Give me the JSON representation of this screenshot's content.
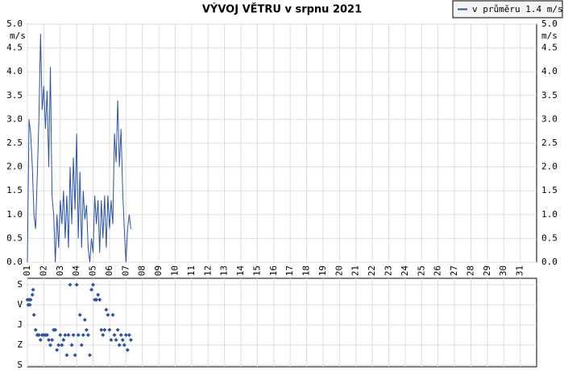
{
  "chart_data": [
    {
      "type": "line",
      "title": "VÝVOJ VĚTRU v srpnu 2021",
      "y_unit": "m/s",
      "series": [
        {
          "name": "v průměru 1.4 m/s",
          "color": "#2a52a8",
          "x": [
            1.0,
            1.1,
            1.2,
            1.3,
            1.4,
            1.5,
            1.6,
            1.7,
            1.8,
            1.9,
            2.0,
            2.1,
            2.2,
            2.3,
            2.4,
            2.5,
            2.6,
            2.7,
            2.8,
            2.9,
            3.0,
            3.1,
            3.2,
            3.3,
            3.4,
            3.5,
            3.6,
            3.7,
            3.8,
            3.9,
            4.0,
            4.1,
            4.2,
            4.3,
            4.4,
            4.5,
            4.6,
            4.7,
            4.8,
            4.9,
            5.0,
            5.1,
            5.2,
            5.3,
            5.4,
            5.5,
            5.6,
            5.7,
            5.8,
            5.9,
            6.0,
            6.1,
            6.2,
            6.3,
            6.4,
            6.5,
            6.6,
            6.7,
            6.8,
            6.9,
            7.0,
            7.1,
            7.2,
            7.3
          ],
          "values": [
            0.0,
            3.0,
            2.7,
            2.0,
            1.0,
            0.7,
            1.8,
            3.0,
            4.8,
            3.2,
            3.7,
            2.8,
            3.6,
            2.0,
            4.1,
            1.4,
            1.0,
            0.0,
            1.0,
            0.3,
            1.3,
            0.8,
            1.5,
            0.5,
            1.4,
            0.3,
            2.0,
            0.8,
            2.2,
            1.1,
            2.7,
            0.5,
            1.9,
            0.3,
            1.5,
            0.9,
            1.2,
            0.3,
            0.0,
            0.5,
            0.2,
            1.4,
            0.8,
            1.3,
            0.2,
            1.3,
            0.5,
            1.4,
            0.3,
            1.4,
            0.7,
            1.3,
            0.8,
            2.7,
            2.1,
            3.4,
            2.0,
            2.8,
            1.5,
            0.7,
            0.0,
            0.7,
            1.0,
            0.7
          ]
        }
      ],
      "xlim": [
        1,
        32
      ],
      "xticks": [
        {
          "value": 1,
          "label": "01"
        },
        {
          "value": 2,
          "label": "02"
        },
        {
          "value": 3,
          "label": "03"
        },
        {
          "value": 4,
          "label": "04"
        },
        {
          "value": 5,
          "label": "05"
        },
        {
          "value": 6,
          "label": "06"
        },
        {
          "value": 7,
          "label": "07"
        },
        {
          "value": 8,
          "label": "08"
        },
        {
          "value": 9,
          "label": "09"
        },
        {
          "value": 10,
          "label": "10"
        },
        {
          "value": 11,
          "label": "11"
        },
        {
          "value": 12,
          "label": "12"
        },
        {
          "value": 13,
          "label": "13"
        },
        {
          "value": 14,
          "label": "14"
        },
        {
          "value": 15,
          "label": "15"
        },
        {
          "value": 16,
          "label": "16"
        },
        {
          "value": 17,
          "label": "17"
        },
        {
          "value": 18,
          "label": "18"
        },
        {
          "value": 19,
          "label": "19"
        },
        {
          "value": 20,
          "label": "20"
        },
        {
          "value": 21,
          "label": "21"
        },
        {
          "value": 22,
          "label": "22"
        },
        {
          "value": 23,
          "label": "23"
        },
        {
          "value": 24,
          "label": "24"
        },
        {
          "value": 25,
          "label": "25"
        },
        {
          "value": 26,
          "label": "26"
        },
        {
          "value": 27,
          "label": "27"
        },
        {
          "value": 28,
          "label": "28"
        },
        {
          "value": 29,
          "label": "29"
        },
        {
          "value": 30,
          "label": "30"
        },
        {
          "value": 31,
          "label": "31"
        }
      ],
      "ylim": [
        0,
        5
      ],
      "yticks": [
        {
          "value": 0,
          "label": "0.0"
        },
        {
          "value": 0.5,
          "label": "0.5"
        },
        {
          "value": 1,
          "label": "1.0"
        },
        {
          "value": 1.5,
          "label": "1.5"
        },
        {
          "value": 2,
          "label": "2.0"
        },
        {
          "value": 2.5,
          "label": "2.5"
        },
        {
          "value": 3,
          "label": "3.0"
        },
        {
          "value": 3.5,
          "label": "3.5"
        },
        {
          "value": 4,
          "label": "4.0"
        },
        {
          "value": 4.5,
          "label": "4.5"
        },
        {
          "value": 5,
          "label": "5.0"
        }
      ],
      "grid": true,
      "legend": "top-right"
    },
    {
      "type": "scatter",
      "color": "#2a52a8",
      "x": [
        1.0,
        1.05,
        1.1,
        1.15,
        1.2,
        1.3,
        1.35,
        1.4,
        1.5,
        1.6,
        1.7,
        1.8,
        1.9,
        2.0,
        2.1,
        2.2,
        2.3,
        2.4,
        2.5,
        2.6,
        2.7,
        2.8,
        2.9,
        3.0,
        3.1,
        3.2,
        3.3,
        3.4,
        3.5,
        3.6,
        3.7,
        3.8,
        3.9,
        4.0,
        4.1,
        4.2,
        4.3,
        4.4,
        4.5,
        4.6,
        4.7,
        4.8,
        4.9,
        5.0,
        5.1,
        5.2,
        5.3,
        5.4,
        5.5,
        5.6,
        5.7,
        5.8,
        5.9,
        6.0,
        6.1,
        6.2,
        6.3,
        6.4,
        6.5,
        6.6,
        6.7,
        6.8,
        6.9,
        7.0,
        7.1,
        7.2,
        7.3
      ],
      "values": [
        67,
        90,
        67,
        90,
        67,
        45,
        22,
        135,
        202,
        225,
        225,
        247,
        225,
        225,
        225,
        225,
        247,
        270,
        247,
        202,
        202,
        292,
        270,
        225,
        270,
        247,
        225,
        315,
        225,
        0,
        270,
        225,
        315,
        0,
        225,
        135,
        270,
        225,
        157,
        202,
        225,
        315,
        22,
        0,
        67,
        67,
        45,
        67,
        202,
        225,
        202,
        112,
        135,
        202,
        247,
        135,
        225,
        247,
        202,
        270,
        225,
        247,
        270,
        225,
        292,
        225,
        247
      ],
      "xlim": [
        1,
        32
      ],
      "xticks": [
        1,
        2,
        3,
        4,
        5,
        6,
        7,
        8,
        9,
        10,
        11,
        12,
        13,
        14,
        15,
        16,
        17,
        18,
        19,
        20,
        21,
        22,
        23,
        24,
        25,
        26,
        27,
        28,
        29,
        30,
        31
      ],
      "ylim": [
        360,
        0
      ],
      "yticks": [
        {
          "value": 0,
          "label": "S"
        },
        {
          "value": 90,
          "label": "V"
        },
        {
          "value": 180,
          "label": "J"
        },
        {
          "value": 270,
          "label": "Z"
        },
        {
          "value": 360,
          "label": "S"
        }
      ],
      "grid": true
    }
  ]
}
